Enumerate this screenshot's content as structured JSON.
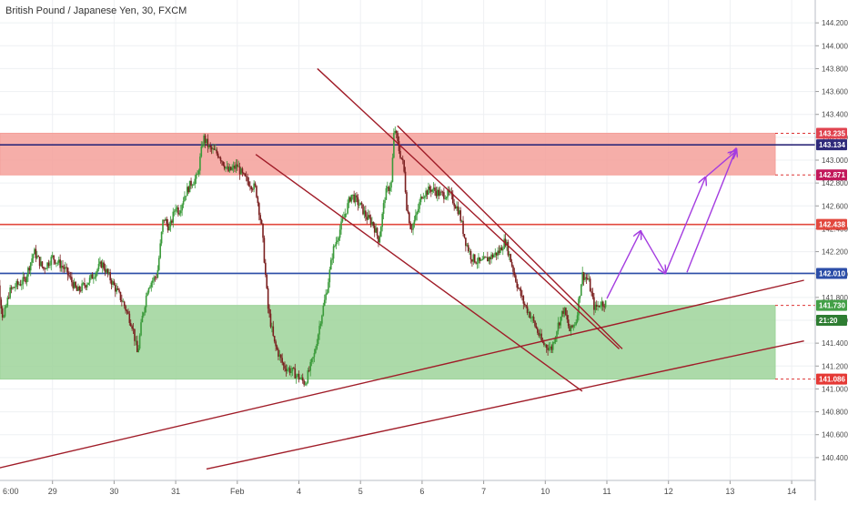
{
  "title": "British Pound / Japanese Yen, 30, FXCM",
  "colors": {
    "up": "#3a9a3a",
    "down": "#7a1f1f",
    "resistance_zone": "#f4a09a",
    "support_zone": "#9ed49a",
    "trendline": "#a01c28",
    "blue_line": "#2c4ea8",
    "navy_line": "#2f2a7a",
    "red_line": "#e2483e",
    "projection": "#a43ce0",
    "grid": "#eef0f3",
    "axis_text": "#4a4a4a"
  },
  "chart_data": {
    "type": "candlestick",
    "symbol": "British Pound / Japanese Yen",
    "timeframe": "30",
    "source": "FXCM",
    "ylim": [
      140.2,
      144.4
    ],
    "y_ticks": [
      "140.400",
      "140.600",
      "140.800",
      "141.000",
      "141.200",
      "141.400",
      "141.600",
      "141.800",
      "142.000",
      "142.200",
      "142.400",
      "142.600",
      "142.800",
      "143.000",
      "143.200",
      "143.400",
      "143.600",
      "143.800",
      "144.000",
      "144.200"
    ],
    "x_ticks": [
      {
        "label": "6:00",
        "day": 0
      },
      {
        "label": "29",
        "day": 1
      },
      {
        "label": "30",
        "day": 2
      },
      {
        "label": "31",
        "day": 3
      },
      {
        "label": "Feb",
        "day": 4
      },
      {
        "label": "4",
        "day": 5
      },
      {
        "label": "5",
        "day": 6
      },
      {
        "label": "6",
        "day": 7
      },
      {
        "label": "7",
        "day": 8
      },
      {
        "label": "10",
        "day": 9
      },
      {
        "label": "11",
        "day": 10
      },
      {
        "label": "12",
        "day": 11
      },
      {
        "label": "13",
        "day": 12
      },
      {
        "label": "14",
        "day": 13
      }
    ],
    "price_path_day_price": [
      [
        0.0,
        142.25
      ],
      [
        0.1,
        142.0
      ],
      [
        0.2,
        141.6
      ],
      [
        0.3,
        141.85
      ],
      [
        0.4,
        141.9
      ],
      [
        0.55,
        141.95
      ],
      [
        0.7,
        142.2
      ],
      [
        0.85,
        142.05
      ],
      [
        1.0,
        142.15
      ],
      [
        1.2,
        142.05
      ],
      [
        1.4,
        141.85
      ],
      [
        1.6,
        141.95
      ],
      [
        1.8,
        142.1
      ],
      [
        2.0,
        141.9
      ],
      [
        2.15,
        141.75
      ],
      [
        2.3,
        141.55
      ],
      [
        2.38,
        141.3
      ],
      [
        2.45,
        141.6
      ],
      [
        2.55,
        141.9
      ],
      [
        2.7,
        142.0
      ],
      [
        2.8,
        142.5
      ],
      [
        2.9,
        142.4
      ],
      [
        3.0,
        142.6
      ],
      [
        3.05,
        142.55
      ],
      [
        3.15,
        142.7
      ],
      [
        3.25,
        142.8
      ],
      [
        3.35,
        142.85
      ],
      [
        3.45,
        143.2
      ],
      [
        3.55,
        143.1
      ],
      [
        3.7,
        143.05
      ],
      [
        3.85,
        142.9
      ],
      [
        4.0,
        142.95
      ],
      [
        4.1,
        142.85
      ],
      [
        4.3,
        142.75
      ],
      [
        4.4,
        142.4
      ],
      [
        4.5,
        141.7
      ],
      [
        4.6,
        141.4
      ],
      [
        4.75,
        141.2
      ],
      [
        4.9,
        141.15
      ],
      [
        5.0,
        141.1
      ],
      [
        5.1,
        141.05
      ],
      [
        5.25,
        141.3
      ],
      [
        5.35,
        141.6
      ],
      [
        5.45,
        141.85
      ],
      [
        5.55,
        142.2
      ],
      [
        5.7,
        142.45
      ],
      [
        5.85,
        142.7
      ],
      [
        6.0,
        142.6
      ],
      [
        6.1,
        142.5
      ],
      [
        6.2,
        142.45
      ],
      [
        6.3,
        142.3
      ],
      [
        6.4,
        142.7
      ],
      [
        6.5,
        142.8
      ],
      [
        6.55,
        143.3
      ],
      [
        6.62,
        143.1
      ],
      [
        6.7,
        142.95
      ],
      [
        6.75,
        142.6
      ],
      [
        6.82,
        142.4
      ],
      [
        6.9,
        142.5
      ],
      [
        7.0,
        142.7
      ],
      [
        7.15,
        142.75
      ],
      [
        7.3,
        142.7
      ],
      [
        7.45,
        142.7
      ],
      [
        7.6,
        142.55
      ],
      [
        7.7,
        142.3
      ],
      [
        7.8,
        142.15
      ],
      [
        7.95,
        142.1
      ],
      [
        8.1,
        142.15
      ],
      [
        8.25,
        142.2
      ],
      [
        8.35,
        142.3
      ],
      [
        8.45,
        142.1
      ],
      [
        8.55,
        141.9
      ],
      [
        8.65,
        141.75
      ],
      [
        8.8,
        141.6
      ],
      [
        8.95,
        141.4
      ],
      [
        9.1,
        141.35
      ],
      [
        9.2,
        141.55
      ],
      [
        9.3,
        141.7
      ],
      [
        9.4,
        141.5
      ],
      [
        9.5,
        141.6
      ],
      [
        9.6,
        142.0
      ],
      [
        9.7,
        141.95
      ],
      [
        9.8,
        141.7
      ],
      [
        9.9,
        141.75
      ],
      [
        10.0,
        141.75
      ]
    ],
    "zones": [
      {
        "top": 143.235,
        "bottom": 142.871,
        "color": "#f4a09a",
        "label": "resistance"
      },
      {
        "top": 141.73,
        "bottom": 141.086,
        "color": "#9ed49a",
        "label": "support"
      }
    ],
    "horizontal_lines": [
      {
        "price": 143.134,
        "color": "#2f2a7a"
      },
      {
        "price": 142.438,
        "color": "#e2483e"
      },
      {
        "price": 142.01,
        "color": "#2c4ea8"
      }
    ],
    "trendlines": [
      {
        "from": [
          -0.1,
          140.28
        ],
        "to": [
          13.2,
          141.95
        ]
      },
      {
        "from": [
          3.5,
          140.3
        ],
        "to": [
          13.2,
          141.42
        ]
      },
      {
        "from": [
          4.3,
          143.05
        ],
        "to": [
          9.6,
          140.98
        ]
      },
      {
        "from": [
          5.3,
          143.8
        ],
        "to": [
          10.2,
          141.35
        ]
      },
      {
        "from": [
          6.6,
          143.3
        ],
        "to": [
          10.25,
          141.35
        ]
      }
    ],
    "projection": [
      [
        10.0,
        141.79
      ],
      [
        10.55,
        142.38
      ],
      [
        10.95,
        142.01
      ],
      [
        11.6,
        142.85
      ],
      [
        12.1,
        143.08
      ]
    ],
    "projection2": [
      [
        11.3,
        142.02
      ],
      [
        12.1,
        143.1
      ]
    ],
    "price_labels": [
      {
        "text": "143.235",
        "price": 143.235,
        "bg": "#e0434f"
      },
      {
        "text": "143.134",
        "price": 143.134,
        "bg": "#2f2a7a"
      },
      {
        "text": "142.871",
        "price": 142.871,
        "bg": "#c2185b"
      },
      {
        "text": "142.438",
        "price": 142.438,
        "bg": "#e2483e"
      },
      {
        "text": "142.010",
        "price": 142.01,
        "bg": "#2c4ea8"
      },
      {
        "text": "141.730",
        "price": 141.73,
        "bg": "#43a047"
      },
      {
        "text": "21:20",
        "price": 141.6,
        "bg": "#2e7d32"
      },
      {
        "text": "141.086",
        "price": 141.086,
        "bg": "#e53935"
      }
    ]
  }
}
